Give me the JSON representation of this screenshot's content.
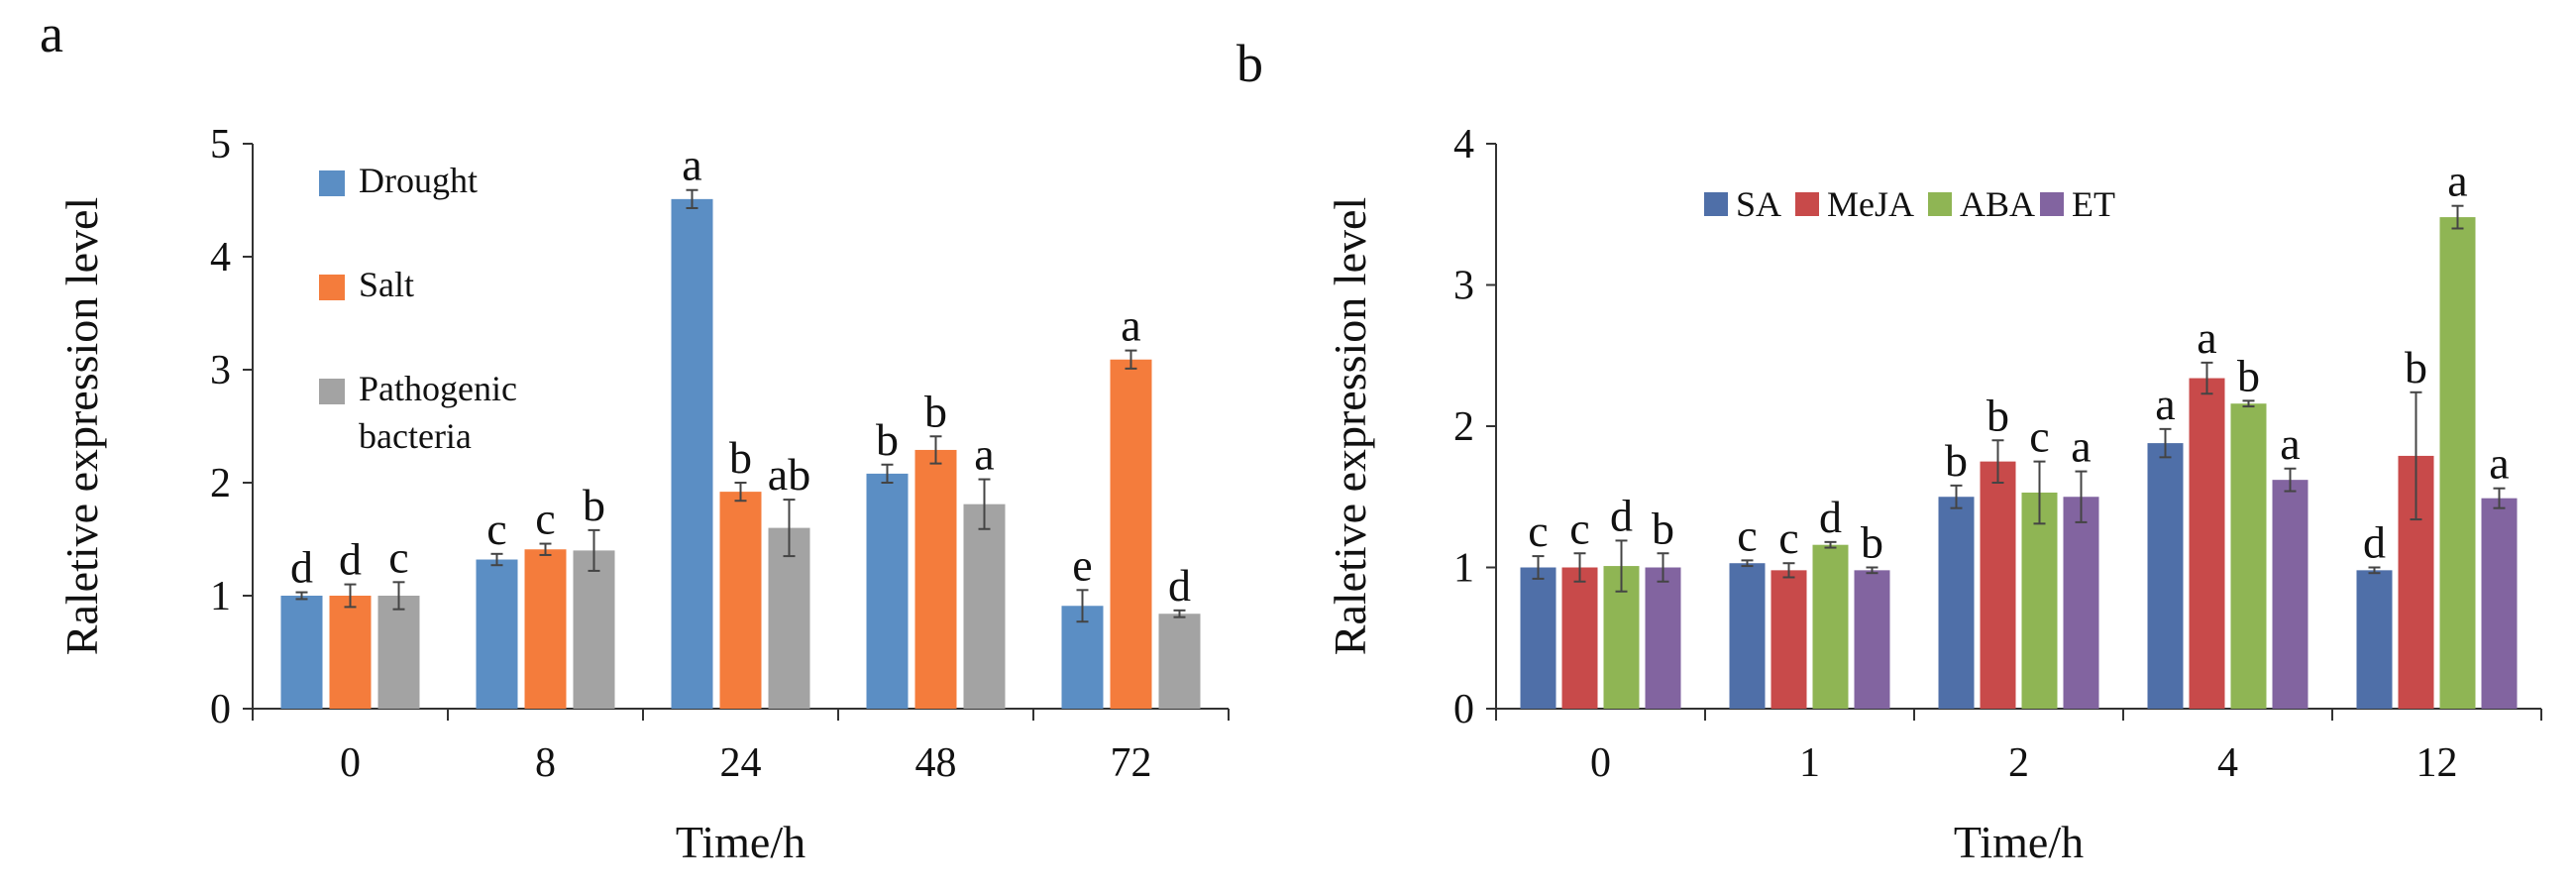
{
  "chart_data": [
    {
      "panel_label": "a",
      "type": "bar",
      "title": "",
      "xlabel": "Time/h",
      "ylabel": "Raletive expression level",
      "ylim": [
        0,
        5
      ],
      "yticks": [
        "0",
        "1",
        "2",
        "3",
        "4",
        "5"
      ],
      "categories": [
        "0",
        "8",
        "24",
        "48",
        "72"
      ],
      "legend_position": "top-left",
      "legend_layout": "vertical",
      "series": [
        {
          "name": "Drought",
          "color": "#5B8EC4",
          "values": [
            1.0,
            1.32,
            4.51,
            2.08,
            0.91
          ],
          "errors": [
            0.03,
            0.05,
            0.08,
            0.08,
            0.14
          ],
          "labels": [
            "d",
            "c",
            "a",
            "b",
            "e"
          ]
        },
        {
          "name": "Salt",
          "color": "#F47C3C",
          "values": [
            1.0,
            1.41,
            1.92,
            2.29,
            3.09
          ],
          "errors": [
            0.1,
            0.05,
            0.08,
            0.12,
            0.08
          ],
          "labels": [
            "d",
            "c",
            "b",
            "b",
            "a"
          ]
        },
        {
          "name": "Pathogenic bacteria",
          "legend_lines": [
            "Pathogenic",
            "bacteria"
          ],
          "color": "#A3A3A3",
          "values": [
            1.0,
            1.4,
            1.6,
            1.81,
            0.84
          ],
          "errors": [
            0.12,
            0.18,
            0.25,
            0.22,
            0.03
          ],
          "labels": [
            "c",
            "b",
            "ab",
            "a",
            "d"
          ]
        }
      ]
    },
    {
      "panel_label": "b",
      "type": "bar",
      "title": "",
      "xlabel": "Time/h",
      "ylabel": "Raletive expression level",
      "ylim": [
        0,
        4
      ],
      "yticks": [
        "0",
        "1",
        "2",
        "3",
        "4"
      ],
      "categories": [
        "0",
        "1",
        "2",
        "4",
        "12"
      ],
      "legend_position": "top",
      "legend_layout": "horizontal",
      "series": [
        {
          "name": "SA",
          "color": "#4F6FA8",
          "values": [
            1.0,
            1.03,
            1.5,
            1.88,
            0.98
          ],
          "errors": [
            0.08,
            0.02,
            0.08,
            0.1,
            0.02
          ],
          "labels": [
            "c",
            "c",
            "b",
            "a",
            "d"
          ]
        },
        {
          "name": "MeJA",
          "color": "#C84A4A",
          "values": [
            1.0,
            0.98,
            1.75,
            2.34,
            1.79
          ],
          "errors": [
            0.1,
            0.05,
            0.15,
            0.11,
            0.45
          ],
          "labels": [
            "c",
            "c",
            "b",
            "a",
            "b"
          ]
        },
        {
          "name": "ABA",
          "color": "#8FB554",
          "values": [
            1.01,
            1.16,
            1.53,
            2.16,
            3.48
          ],
          "errors": [
            0.18,
            0.02,
            0.22,
            0.02,
            0.08
          ],
          "labels": [
            "d",
            "d",
            "c",
            "b",
            "a"
          ]
        },
        {
          "name": "ET",
          "color": "#8264A0",
          "values": [
            1.0,
            0.98,
            1.5,
            1.62,
            1.49
          ],
          "errors": [
            0.1,
            0.02,
            0.18,
            0.08,
            0.07
          ],
          "labels": [
            "b",
            "b",
            "a",
            "a",
            "a"
          ]
        }
      ]
    }
  ]
}
